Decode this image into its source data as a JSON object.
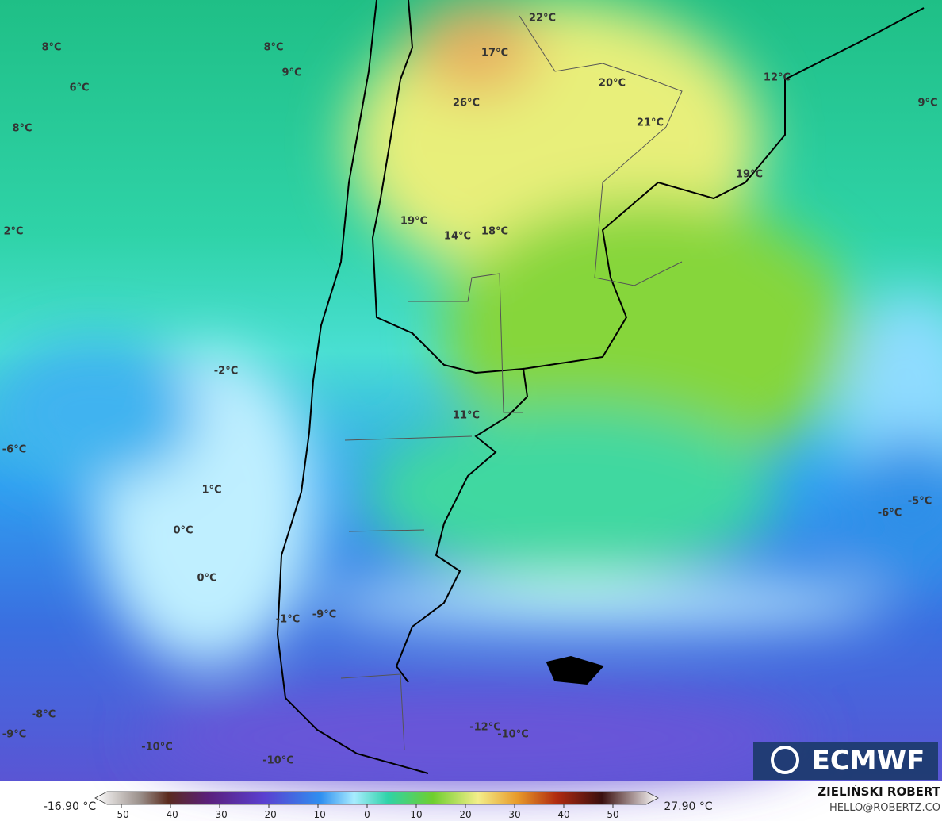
{
  "map_labels": [
    "8°C",
    "8°C",
    "9°C",
    "6°C",
    "8°C",
    "2°C",
    "22°C",
    "17°C",
    "20°C",
    "12°C",
    "9°C",
    "26°C",
    "21°C",
    "19°C",
    "19°C",
    "14°C",
    "18°C",
    "-2°C",
    "11°C",
    "-6°C",
    "1°C",
    "-5°C",
    "-6°C",
    "0°C",
    "0°C",
    "-1°C",
    "-9°C",
    "-8°C",
    "-9°C",
    "-12°C",
    "-10°C",
    "-10°C",
    "-10°C"
  ],
  "colorbar": {
    "min_label": "-16.90 °C",
    "max_label": "27.90 °C",
    "ticks": [
      -50,
      -40,
      -30,
      -20,
      -10,
      0,
      10,
      20,
      30,
      40,
      50
    ]
  },
  "logo": "ECMWF",
  "credit": {
    "author": "ZIELIŃSKI ROBERT",
    "contact": "HELLO@ROBERTZ.CO"
  }
}
